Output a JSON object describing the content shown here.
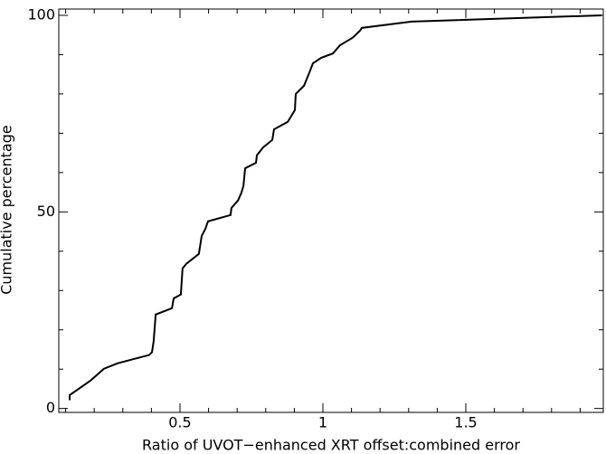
{
  "chart_data": {
    "type": "line",
    "xlabel": "Ratio of UVOT−enhanced XRT offset:combined error",
    "ylabel": "Cumulative percentage",
    "x": [
      0.114,
      0.114,
      0.187,
      0.234,
      0.282,
      0.392,
      0.402,
      0.408,
      0.415,
      0.472,
      0.478,
      0.503,
      0.509,
      0.522,
      0.566,
      0.576,
      0.589,
      0.598,
      0.677,
      0.68,
      0.703,
      0.715,
      0.722,
      0.728,
      0.766,
      0.769,
      0.791,
      0.823,
      0.829,
      0.877,
      0.902,
      0.905,
      0.934,
      0.953,
      0.965,
      0.994,
      1.035,
      1.06,
      1.104,
      1.13,
      1.136,
      1.31,
      1.975
    ],
    "series": [
      {
        "color": "#000000",
        "values": [
          2.1,
          3.4,
          7.1,
          10.1,
          11.5,
          13.6,
          14.3,
          17.2,
          23.9,
          25.5,
          28.0,
          29.0,
          35.6,
          36.8,
          39.3,
          43.9,
          45.7,
          47.6,
          49.2,
          51.0,
          52.9,
          54.9,
          56.6,
          61.1,
          62.5,
          64.4,
          66.4,
          68.3,
          71.0,
          72.9,
          75.9,
          80.0,
          82.1,
          85.5,
          87.8,
          89.2,
          90.3,
          92.4,
          94.3,
          96.1,
          96.8,
          98.4,
          100
        ]
      }
    ],
    "xlim": [
      0.076,
      1.981
    ],
    "ylim": [
      -1,
      101.6
    ],
    "xticks": [
      0.5,
      1,
      1.5
    ],
    "yticks": [
      0,
      50,
      100
    ],
    "xminorticks": [
      0.1,
      0.2,
      0.3,
      0.4,
      0.6,
      0.7,
      0.8,
      0.9,
      1.1,
      1.2,
      1.3,
      1.4,
      1.6,
      1.7,
      1.8,
      1.9
    ],
    "yminorticks": [
      10,
      20,
      30,
      40,
      60,
      70,
      80,
      90
    ]
  }
}
